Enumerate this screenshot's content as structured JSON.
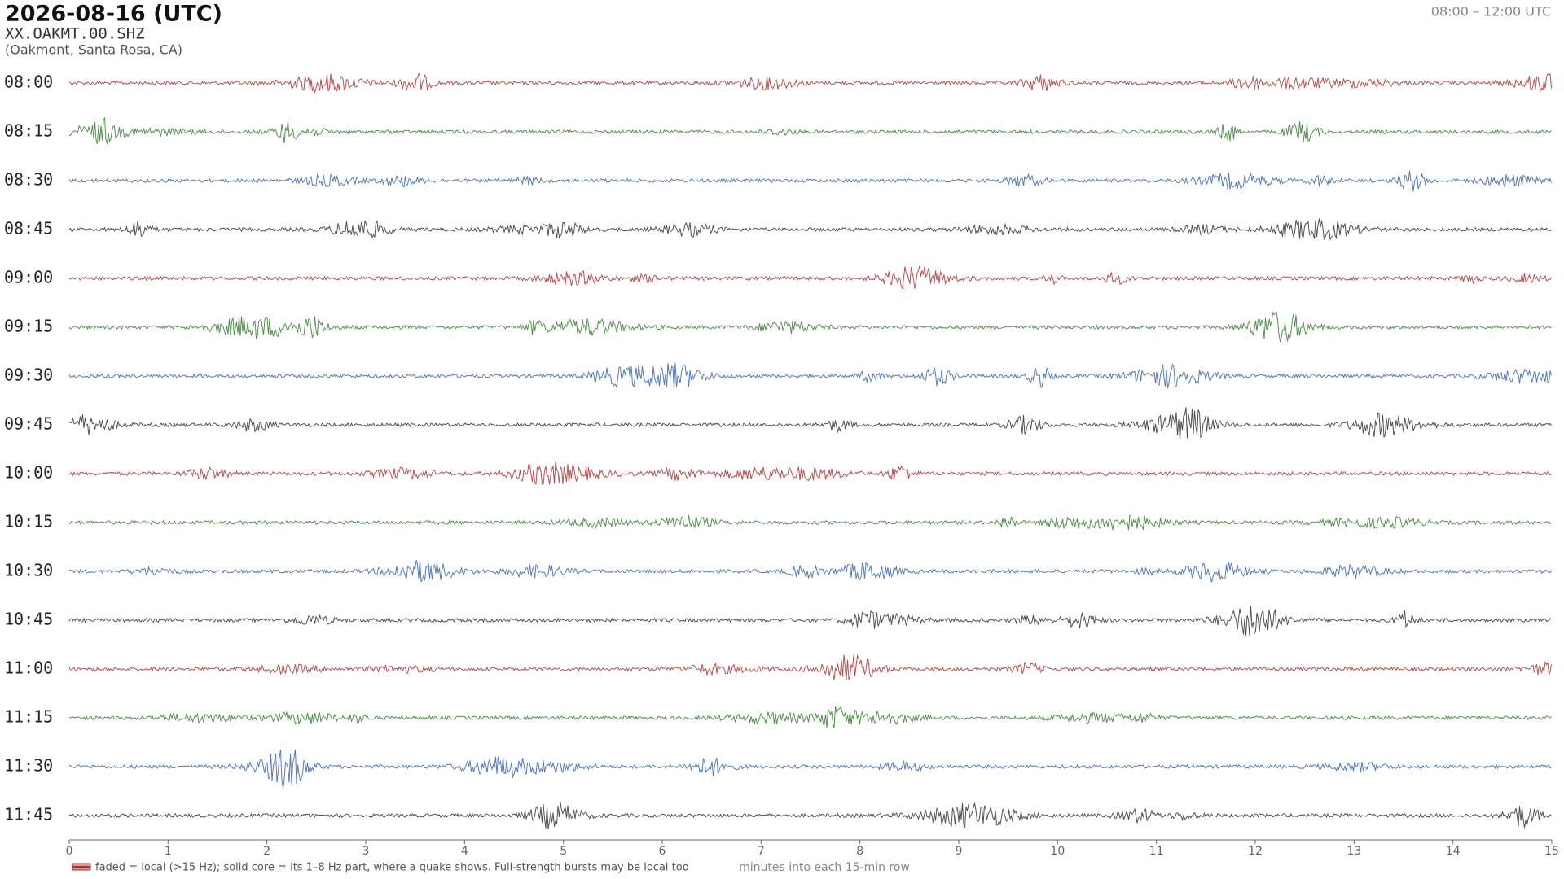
{
  "chart_data": {
    "type": "helicorder",
    "title": "2026-08-16  (UTC)",
    "subtitle": "XX.OAKMT.00.SHZ",
    "location": "(Oakmont, Santa Rosa, CA)",
    "time_range": "08:00 – 12:00 UTC",
    "categories": [
      "08:00",
      "08:15",
      "08:30",
      "08:45",
      "09:00",
      "09:15",
      "09:30",
      "09:45",
      "10:00",
      "10:15",
      "10:30",
      "10:45",
      "11:00",
      "11:15",
      "11:30",
      "11:45"
    ],
    "colors": [
      "#a83232",
      "#3a7d34",
      "#3a64a8",
      "#333333"
    ],
    "xlim": [
      0,
      15
    ],
    "xticks": [
      0,
      1,
      2,
      3,
      4,
      5,
      6,
      7,
      8,
      9,
      10,
      11,
      12,
      13,
      14,
      15
    ],
    "xlabel": "minutes into each 15-min row",
    "legend_note": "faded = local (>15 Hz); solid core = its 1–8 Hz part, where a quake shows. Full-strength bursts may be local too"
  }
}
